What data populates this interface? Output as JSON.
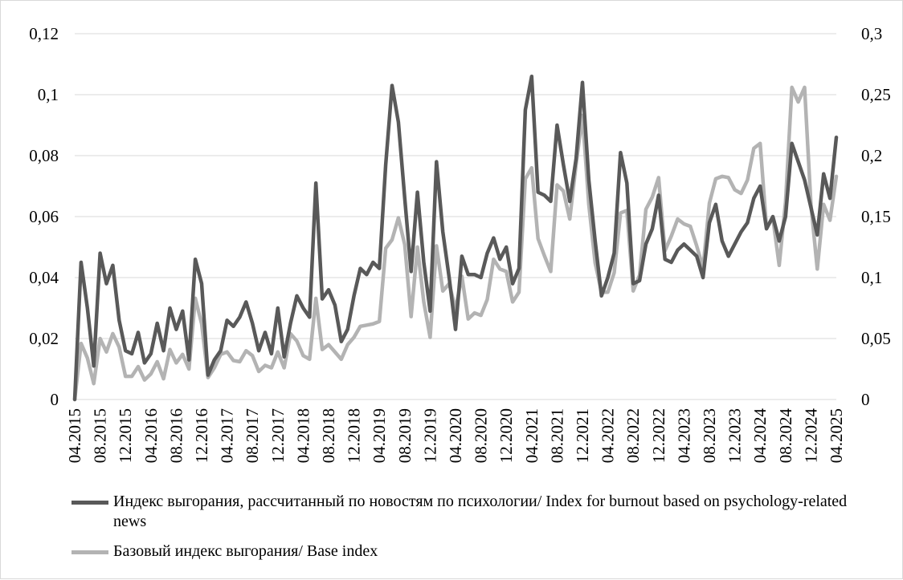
{
  "chart_data": {
    "type": "line",
    "title": "",
    "xlabel": "",
    "ylabel": "",
    "y_left": {
      "min": 0,
      "max": 0.12,
      "ticks": [
        "0",
        "0,02",
        "0,04",
        "0,06",
        "0,08",
        "0,1",
        "0,12"
      ]
    },
    "y_right": {
      "min": 0,
      "max": 0.3,
      "ticks": [
        "0",
        "0,05",
        "0,1",
        "0,15",
        "0,2",
        "0,25",
        "0,3"
      ]
    },
    "grid": true,
    "legend_position": "bottom",
    "x_tick_labels": [
      "04.2015",
      "08.2015",
      "12.2015",
      "04.2016",
      "08.2016",
      "12.2016",
      "04.2017",
      "08.2017",
      "12.2017",
      "04.2018",
      "08.2018",
      "12.2018",
      "04.2019",
      "08.2019",
      "12.2019",
      "04.2020",
      "08.2020",
      "12.2020",
      "04.2021",
      "08.2021",
      "12.2021",
      "04.2022",
      "08.2022",
      "12.2022",
      "04.2023",
      "08.2023",
      "12.2023",
      "04.2024",
      "08.2024",
      "12.2024",
      "04.2025"
    ],
    "series": [
      {
        "name": "Индекс выгорания, рассчитанный по новостям по психологии/ Index for burnout based on psychology-related news",
        "axis": "left",
        "color": "#595959",
        "values": [
          0.0,
          0.045,
          0.03,
          0.011,
          0.048,
          0.038,
          0.044,
          0.026,
          0.016,
          0.015,
          0.022,
          0.012,
          0.015,
          0.025,
          0.016,
          0.03,
          0.023,
          0.029,
          0.013,
          0.046,
          0.038,
          0.008,
          0.013,
          0.016,
          0.026,
          0.024,
          0.027,
          0.032,
          0.025,
          0.016,
          0.022,
          0.015,
          0.03,
          0.014,
          0.025,
          0.034,
          0.03,
          0.027,
          0.071,
          0.033,
          0.036,
          0.031,
          0.019,
          0.023,
          0.034,
          0.043,
          0.041,
          0.045,
          0.043,
          0.077,
          0.103,
          0.091,
          0.066,
          0.042,
          0.068,
          0.045,
          0.029,
          0.078,
          0.055,
          0.04,
          0.023,
          0.047,
          0.041,
          0.041,
          0.04,
          0.048,
          0.053,
          0.046,
          0.05,
          0.038,
          0.043,
          0.095,
          0.106,
          0.068,
          0.067,
          0.065,
          0.09,
          0.077,
          0.065,
          0.079,
          0.104,
          0.072,
          0.052,
          0.034,
          0.04,
          0.048,
          0.081,
          0.071,
          0.038,
          0.039,
          0.051,
          0.056,
          0.067,
          0.046,
          0.045,
          0.049,
          0.051,
          0.049,
          0.047,
          0.04,
          0.058,
          0.064,
          0.052,
          0.047,
          0.051,
          0.055,
          0.058,
          0.066,
          0.07,
          0.056,
          0.06,
          0.052,
          0.06,
          0.084,
          0.078,
          0.072,
          0.063,
          0.054,
          0.074,
          0.066,
          0.086
        ]
      },
      {
        "name": "Базовый индекс выгорания/ Base index",
        "axis": "right",
        "color": "#b3b3b3",
        "values": [
          0.0,
          0.046,
          0.034,
          0.013,
          0.05,
          0.039,
          0.054,
          0.043,
          0.019,
          0.019,
          0.027,
          0.016,
          0.021,
          0.031,
          0.017,
          0.041,
          0.03,
          0.037,
          0.025,
          0.083,
          0.062,
          0.018,
          0.026,
          0.037,
          0.039,
          0.032,
          0.031,
          0.04,
          0.036,
          0.023,
          0.028,
          0.026,
          0.039,
          0.026,
          0.054,
          0.048,
          0.036,
          0.033,
          0.083,
          0.041,
          0.045,
          0.039,
          0.033,
          0.045,
          0.051,
          0.06,
          0.061,
          0.062,
          0.064,
          0.124,
          0.131,
          0.149,
          0.127,
          0.068,
          0.125,
          0.08,
          0.051,
          0.126,
          0.089,
          0.095,
          0.074,
          0.101,
          0.066,
          0.071,
          0.069,
          0.082,
          0.115,
          0.107,
          0.105,
          0.08,
          0.088,
          0.181,
          0.19,
          0.132,
          0.118,
          0.105,
          0.176,
          0.171,
          0.148,
          0.193,
          0.233,
          0.16,
          0.112,
          0.088,
          0.088,
          0.104,
          0.153,
          0.155,
          0.089,
          0.102,
          0.156,
          0.166,
          0.182,
          0.122,
          0.134,
          0.148,
          0.144,
          0.142,
          0.126,
          0.108,
          0.161,
          0.181,
          0.183,
          0.182,
          0.172,
          0.169,
          0.18,
          0.206,
          0.21,
          0.141,
          0.149,
          0.11,
          0.162,
          0.256,
          0.244,
          0.256,
          0.16,
          0.107,
          0.16,
          0.147,
          0.183
        ]
      }
    ]
  }
}
